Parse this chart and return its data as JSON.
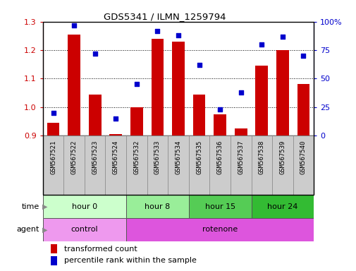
{
  "title": "GDS5341 / ILMN_1259794",
  "samples": [
    "GSM567521",
    "GSM567522",
    "GSM567523",
    "GSM567524",
    "GSM567532",
    "GSM567533",
    "GSM567534",
    "GSM567535",
    "GSM567536",
    "GSM567537",
    "GSM567538",
    "GSM567539",
    "GSM567540"
  ],
  "transformed_count": [
    0.945,
    1.255,
    1.045,
    0.905,
    1.0,
    1.24,
    1.23,
    1.045,
    0.975,
    0.925,
    1.145,
    1.2,
    1.082
  ],
  "percentile_rank": [
    20,
    97,
    72,
    15,
    45,
    92,
    88,
    62,
    23,
    38,
    80,
    87,
    70
  ],
  "ymin": 0.9,
  "ymax": 1.3,
  "yticks": [
    0.9,
    1.0,
    1.1,
    1.2,
    1.3
  ],
  "y2min": 0,
  "y2max": 100,
  "y2ticks": [
    0,
    25,
    50,
    75,
    100
  ],
  "y2ticklabels": [
    "0",
    "25",
    "50",
    "75",
    "100%"
  ],
  "bar_color": "#cc0000",
  "dot_color": "#0000cc",
  "time_groups": [
    {
      "label": "hour 0",
      "start": 0,
      "end": 4,
      "color": "#ccffcc"
    },
    {
      "label": "hour 8",
      "start": 4,
      "end": 7,
      "color": "#99ee99"
    },
    {
      "label": "hour 15",
      "start": 7,
      "end": 10,
      "color": "#55cc55"
    },
    {
      "label": "hour 24",
      "start": 10,
      "end": 13,
      "color": "#33bb33"
    }
  ],
  "agent_groups": [
    {
      "label": "control",
      "start": 0,
      "end": 4,
      "color": "#ee99ee"
    },
    {
      "label": "rotenone",
      "start": 4,
      "end": 13,
      "color": "#dd55dd"
    }
  ],
  "tick_label_bg": "#cccccc",
  "grid_color": "#000000",
  "legend_red_label": "transformed count",
  "legend_blue_label": "percentile rank within the sample"
}
